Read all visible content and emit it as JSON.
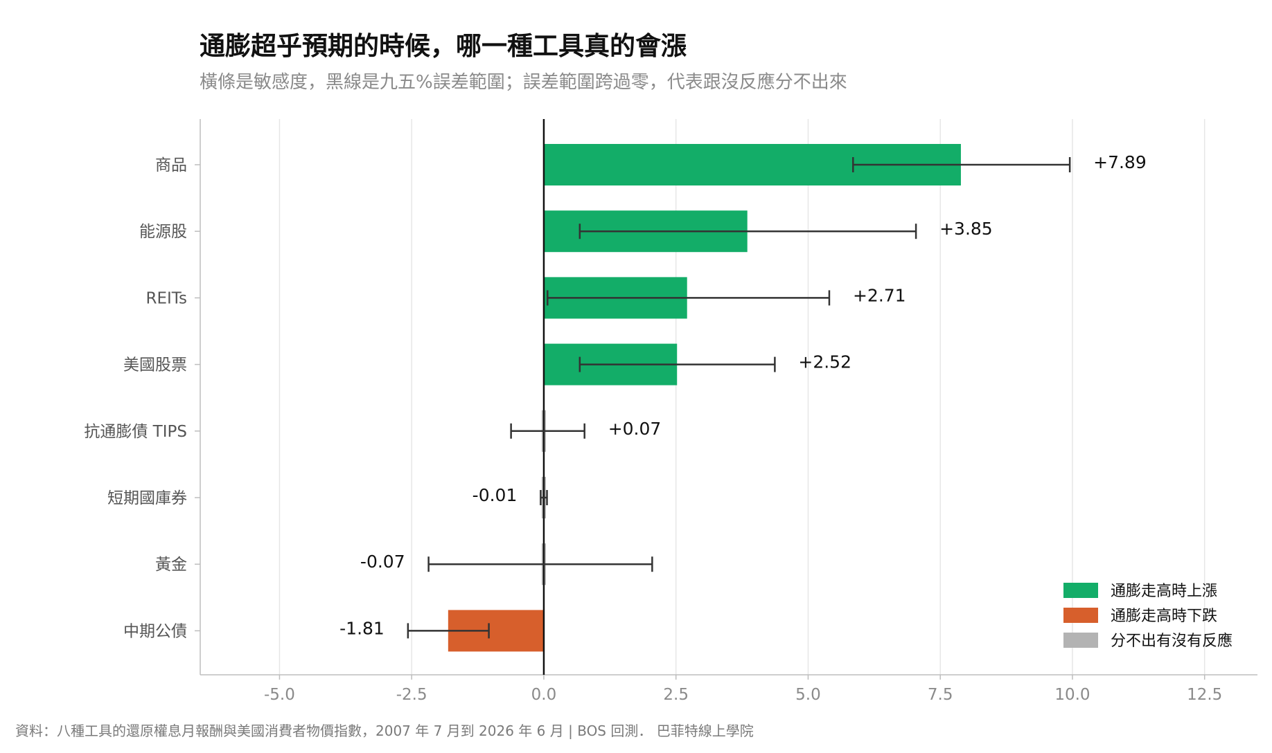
{
  "title": "通膨超乎預期的時候，哪一種工具真的會漲",
  "subtitle": "橫條是敏感度，黑線是九五%誤差範圍；誤差範圍跨過零，代表跟沒反應分不出來",
  "footer": "資料：八種工具的還原權息月報酬與美國消費者物價指數，2007 年 7 月到 2026 年 6 月 | BOS 回測．  巴菲特線上學院",
  "colors": {
    "up": "#13ad68",
    "down": "#d75f2c",
    "neutral": "#b3b3b3",
    "errorbar": "#333333",
    "grid": "#e6e6e6",
    "axis": "#bdbdbd",
    "zero": "#111111"
  },
  "chart_data": {
    "type": "bar",
    "orientation": "horizontal",
    "categories": [
      "商品",
      "能源股",
      "REITs",
      "美國股票",
      "抗通膨債 TIPS",
      "短期國庫券",
      "黃金",
      "中期公債"
    ],
    "values": [
      7.89,
      3.85,
      2.71,
      2.52,
      0.07,
      -0.01,
      -0.07,
      -1.81
    ],
    "value_labels": [
      "+7.89",
      "+3.85",
      "+2.71",
      "+2.52",
      "+0.07",
      "-0.01",
      "-0.07",
      "-1.81"
    ],
    "ci_low": [
      5.85,
      0.68,
      0.07,
      0.68,
      -0.62,
      -0.06,
      -2.18,
      -2.57
    ],
    "ci_high": [
      9.95,
      7.04,
      5.4,
      4.37,
      0.77,
      0.06,
      2.05,
      -1.04
    ],
    "classes": [
      "up",
      "up",
      "up",
      "up",
      "neutral",
      "neutral",
      "neutral",
      "down"
    ],
    "xlim": [
      -6.5,
      13.5
    ],
    "xticks": [
      "-5.0",
      "-2.5",
      "0.0",
      "2.5",
      "5.0",
      "7.5",
      "10.0",
      "12.5"
    ],
    "grid": "vertical",
    "legend_position": "bottom-right",
    "legend": [
      {
        "key": "up",
        "label": "通膨走高時上漲"
      },
      {
        "key": "down",
        "label": "通膨走高時下跌"
      },
      {
        "key": "neutral",
        "label": "分不出有沒有反應"
      }
    ]
  }
}
